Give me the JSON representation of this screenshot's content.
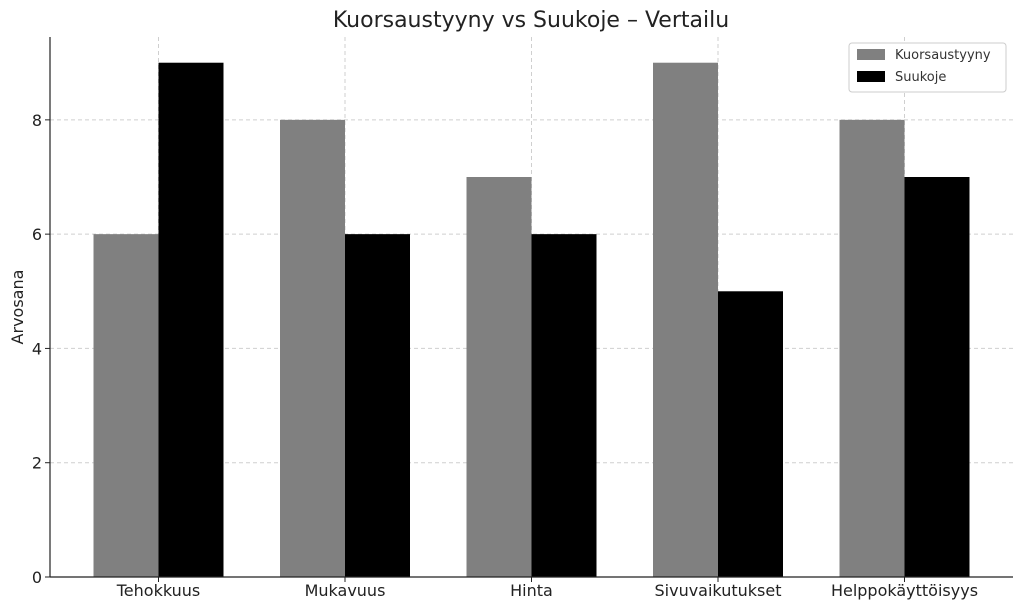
{
  "chart_data": {
    "type": "bar",
    "title": "Kuorsaustyyny vs Suukoje – Vertailu",
    "xlabel": "",
    "ylabel": "Arvosana",
    "categories": [
      "Tehokkuus",
      "Mukavuus",
      "Hinta",
      "Sivuvaikutukset",
      "Helppokäyttöisyys"
    ],
    "series": [
      {
        "name": "Kuorsaustyyny",
        "color": "#808080",
        "values": [
          6,
          8,
          7,
          9,
          8
        ]
      },
      {
        "name": "Suukoje",
        "color": "#000000",
        "values": [
          9,
          6,
          6,
          5,
          7
        ]
      }
    ],
    "ylim": [
      0,
      9.45
    ],
    "yticks": [
      0,
      2,
      4,
      6,
      8
    ],
    "grid": true,
    "legend_position": "top-right"
  }
}
